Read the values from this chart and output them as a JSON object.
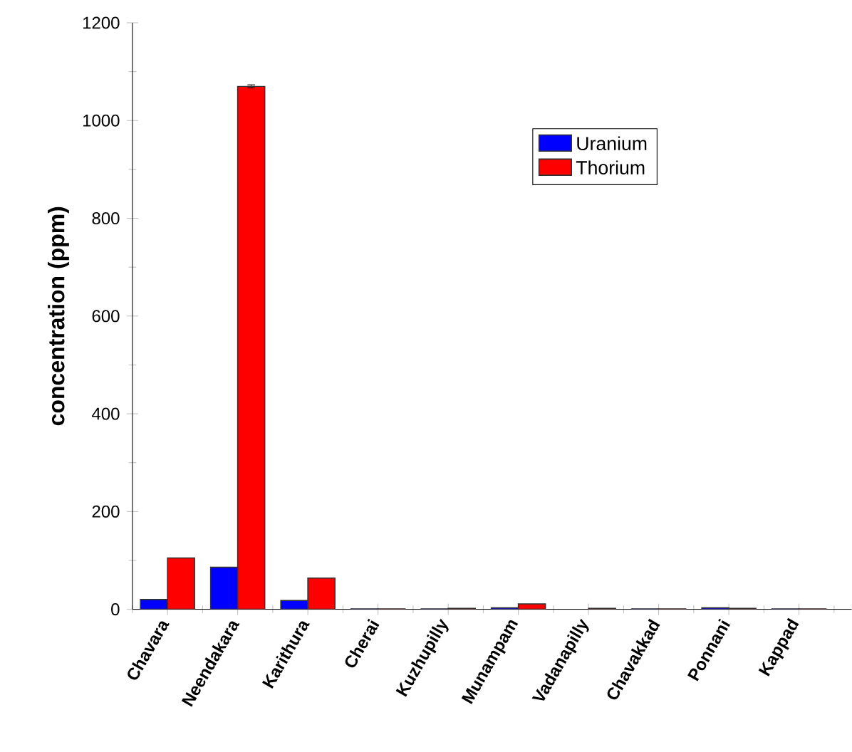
{
  "chart_data": {
    "type": "bar",
    "ylabel": "concentration (ppm)",
    "categories": [
      "Chavara",
      "Neendakara",
      "Karithura",
      "Cherai",
      "Kuzhupilly",
      "Munampam",
      "Vadanapilly",
      "Chavakkad",
      "Ponnani",
      "Kappad"
    ],
    "series": [
      {
        "name": "Uranium",
        "color": "#0000ff",
        "values": [
          20,
          86,
          18,
          1,
          1,
          3,
          null,
          1,
          3,
          1
        ]
      },
      {
        "name": "Thorium",
        "color": "#ff0000",
        "values": [
          105,
          1070,
          64,
          1,
          2,
          11,
          2,
          1,
          2,
          1
        ],
        "errors": [
          null,
          3,
          null,
          null,
          null,
          null,
          null,
          null,
          null,
          null
        ]
      }
    ],
    "ylim": [
      0,
      1200
    ],
    "yticks": [
      0,
      200,
      400,
      600,
      800,
      1000,
      1200
    ],
    "legend": "top right"
  }
}
